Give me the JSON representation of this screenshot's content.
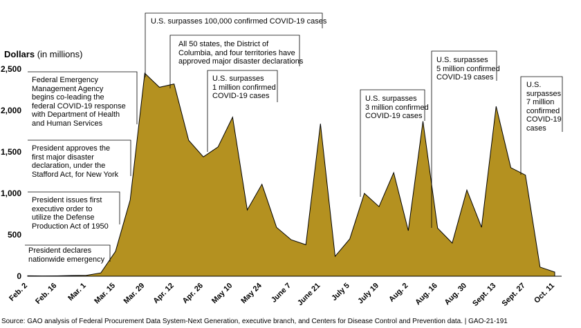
{
  "chart_data": {
    "type": "area",
    "ylabel": "Dollars",
    "ylabel_unit": "(in millions)",
    "ylim": [
      0,
      2500
    ],
    "yticks": [
      0,
      500,
      "1,000",
      "1,500",
      "2,000",
      "2,500"
    ],
    "ytick_values": [
      0,
      500,
      1000,
      1500,
      2000,
      2500
    ],
    "xtick_labels": [
      "Feb. 2",
      "Feb. 16",
      "Mar. 1",
      "Mar. 15",
      "Mar. 29",
      "Apr. 12",
      "Apr. 26",
      "May 10",
      "May 24",
      "June 7",
      "June 21",
      "July 5",
      "July 19",
      "Aug. 2",
      "Aug. 16",
      "Aug. 30",
      "Sept. 13",
      "Sept. 27",
      "Oct. 11"
    ],
    "x": [
      "Feb. 2",
      "Feb. 9",
      "Feb. 16",
      "Feb. 23",
      "Mar. 1",
      "Mar. 8",
      "Mar. 15",
      "Mar. 22",
      "Mar. 29",
      "Apr. 5",
      "Apr. 12",
      "Apr. 19",
      "Apr. 26",
      "May 3",
      "May 10",
      "May 17",
      "May 24",
      "May 31",
      "June 7",
      "June 14",
      "June 21",
      "June 28",
      "July 5",
      "July 12",
      "July 19",
      "July 26",
      "Aug. 2",
      "Aug. 9",
      "Aug. 16",
      "Aug. 23",
      "Aug. 30",
      "Sept. 6",
      "Sept. 13",
      "Sept. 20",
      "Sept. 27",
      "Oct. 4",
      "Oct. 11"
    ],
    "values": [
      5,
      3,
      4,
      8,
      10,
      40,
      300,
      920,
      2450,
      2280,
      2320,
      1640,
      1440,
      1560,
      1920,
      800,
      1110,
      590,
      440,
      380,
      1840,
      240,
      450,
      1000,
      840,
      1250,
      550,
      1870,
      580,
      400,
      1040,
      590,
      2050,
      1310,
      1220,
      110,
      50
    ],
    "series_color": "#b49120",
    "grid": false,
    "annotations": [
      {
        "text": "U.S. surpasses 100,000 confirmed COVID-19 cases",
        "at": "Mar. 29"
      },
      {
        "text": "All 50 states, the District of\nColumbia, and four territories have\napproved major disaster declarations",
        "at": "Apr. 12"
      },
      {
        "text": "U.S. surpasses\n1 million confirmed\nCOVID-19 cases",
        "at": "Apr. 26"
      },
      {
        "text": "U.S. surpasses\n3 million confirmed\nCOVID-19 cases",
        "at": "July 5"
      },
      {
        "text": "U.S. surpasses\n5 million confirmed\nCOVID-19 cases",
        "at": "Aug. 9"
      },
      {
        "text": "U.S.\nsurpasses\n7 million\nconfirmed\nCOVID-19\ncases",
        "at": "Sept. 27"
      },
      {
        "text": "Federal Emergency\nManagement Agency\nbegins co-leading the\nfederal COVID-19 response\nwith Department of Health\nand Human Services",
        "at": "Mar. 22"
      },
      {
        "text": "President approves the\nfirst major disaster\ndeclaration, under the\nStafford Act, for New York",
        "at": "Mar. 15"
      },
      {
        "text": "President issues first\nexecutive order to\nutilize the Defense\nProduction Act of 1950",
        "at": "Mar. 15"
      },
      {
        "text": "President declares\nnationwide emergency",
        "at": "Mar. 8"
      }
    ]
  },
  "source": "Source: GAO analysis of Federal Procurement Data System-Next Generation, executive branch, and Centers for Disease Control and Prevention data.  |  GAO-21-191"
}
